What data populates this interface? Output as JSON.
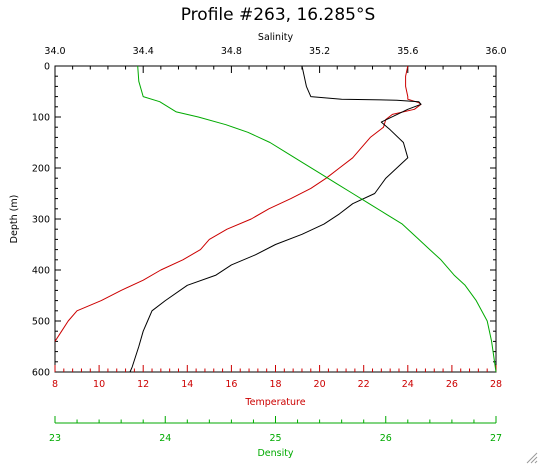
{
  "chart_data": {
    "type": "line",
    "title": "Profile #263, 16.285°S",
    "y_axis": {
      "label": "Depth (m)",
      "range": [
        0,
        600
      ],
      "inverted": true,
      "ticks": [
        "0",
        "100",
        "200",
        "300",
        "400",
        "500",
        "600"
      ]
    },
    "x_axes": [
      {
        "id": "salinity",
        "label": "Salinity",
        "position": "top",
        "range": [
          34.0,
          36.0
        ],
        "ticks": [
          "34.0",
          "34.4",
          "34.8",
          "35.2",
          "35.6",
          "36.0"
        ],
        "color": "#000000"
      },
      {
        "id": "temperature",
        "label": "Temperature",
        "position": "bottom",
        "range": [
          8,
          28
        ],
        "ticks": [
          "8",
          "10",
          "12",
          "14",
          "16",
          "18",
          "20",
          "22",
          "24",
          "26",
          "28"
        ],
        "color": "#cc0000"
      },
      {
        "id": "density",
        "label": "Density",
        "position": "bottom-offset",
        "range": [
          23,
          27
        ],
        "ticks": [
          "23",
          "24",
          "25",
          "26",
          "27"
        ],
        "color": "#00aa00"
      }
    ],
    "grid": false,
    "series": [
      {
        "axis": "temperature",
        "color": "#cc0000",
        "points": [
          [
            24.0,
            0
          ],
          [
            23.9,
            20
          ],
          [
            23.9,
            40
          ],
          [
            24.0,
            60
          ],
          [
            24.0,
            65
          ],
          [
            24.5,
            72
          ],
          [
            24.6,
            75
          ],
          [
            24.3,
            85
          ],
          [
            23.3,
            95
          ],
          [
            23.0,
            105
          ],
          [
            22.9,
            120
          ],
          [
            22.3,
            140
          ],
          [
            21.9,
            160
          ],
          [
            21.5,
            180
          ],
          [
            20.9,
            200
          ],
          [
            20.3,
            220
          ],
          [
            19.6,
            240
          ],
          [
            18.7,
            260
          ],
          [
            17.7,
            280
          ],
          [
            16.9,
            300
          ],
          [
            15.8,
            320
          ],
          [
            15.0,
            340
          ],
          [
            14.6,
            360
          ],
          [
            13.8,
            380
          ],
          [
            12.8,
            400
          ],
          [
            12.0,
            420
          ],
          [
            11.0,
            440
          ],
          [
            10.1,
            460
          ],
          [
            9.0,
            480
          ],
          [
            8.6,
            500
          ],
          [
            8.3,
            520
          ],
          [
            8.0,
            540
          ]
        ]
      },
      {
        "axis": "salinity",
        "color": "#000000",
        "points": [
          [
            35.12,
            0
          ],
          [
            35.13,
            20
          ],
          [
            35.14,
            40
          ],
          [
            35.16,
            60
          ],
          [
            35.3,
            65
          ],
          [
            35.55,
            67
          ],
          [
            35.65,
            70
          ],
          [
            35.66,
            75
          ],
          [
            35.6,
            85
          ],
          [
            35.48,
            110
          ],
          [
            35.52,
            125
          ],
          [
            35.58,
            150
          ],
          [
            35.6,
            180
          ],
          [
            35.55,
            200
          ],
          [
            35.5,
            220
          ],
          [
            35.45,
            250
          ],
          [
            35.35,
            270
          ],
          [
            35.29,
            290
          ],
          [
            35.22,
            310
          ],
          [
            35.12,
            330
          ],
          [
            35.0,
            350
          ],
          [
            34.91,
            370
          ],
          [
            34.8,
            390
          ],
          [
            34.73,
            410
          ],
          [
            34.6,
            430
          ],
          [
            34.5,
            460
          ],
          [
            34.44,
            480
          ],
          [
            34.42,
            500
          ],
          [
            34.4,
            520
          ],
          [
            34.38,
            550
          ],
          [
            34.35,
            590
          ],
          [
            34.34,
            600
          ]
        ]
      },
      {
        "axis": "density",
        "color": "#00aa00",
        "points": [
          [
            23.75,
            0
          ],
          [
            23.76,
            30
          ],
          [
            23.8,
            60
          ],
          [
            23.95,
            70
          ],
          [
            24.1,
            90
          ],
          [
            24.3,
            100
          ],
          [
            24.55,
            115
          ],
          [
            24.75,
            130
          ],
          [
            24.95,
            150
          ],
          [
            25.1,
            170
          ],
          [
            25.25,
            190
          ],
          [
            25.4,
            210
          ],
          [
            25.55,
            230
          ],
          [
            25.7,
            250
          ],
          [
            25.85,
            270
          ],
          [
            26.0,
            290
          ],
          [
            26.15,
            310
          ],
          [
            26.3,
            340
          ],
          [
            26.4,
            360
          ],
          [
            26.5,
            380
          ],
          [
            26.62,
            410
          ],
          [
            26.72,
            430
          ],
          [
            26.82,
            460
          ],
          [
            26.92,
            500
          ],
          [
            26.96,
            540
          ],
          [
            27.0,
            600
          ]
        ]
      }
    ]
  }
}
